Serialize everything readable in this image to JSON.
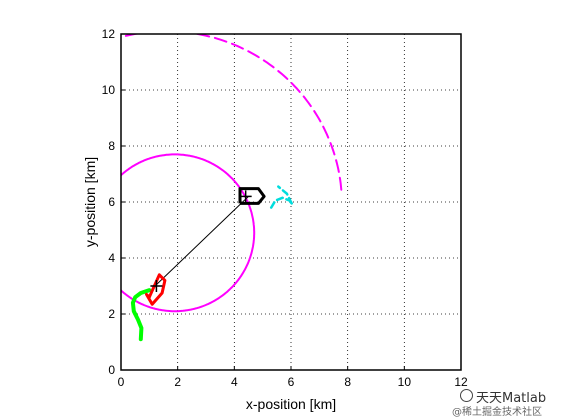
{
  "chart_data": {
    "type": "line",
    "title": "",
    "xlabel": "x-position [km]",
    "ylabel": "y-position [km]",
    "xlim": [
      0,
      12
    ],
    "ylim": [
      0,
      12
    ],
    "xticks": [
      0,
      2,
      4,
      6,
      8,
      10,
      12
    ],
    "yticks": [
      0,
      2,
      4,
      6,
      8,
      10,
      12
    ],
    "grid": true,
    "series": [
      {
        "style": "dashed",
        "color": "#ff00ff",
        "center": [
          1.6,
          5.9
        ],
        "radius": 6.2,
        "arc_deg": [
          5,
          140
        ]
      },
      {
        "style": "solid",
        "color": "#ff00ff",
        "center": [
          1.9,
          4.9
        ],
        "radius": 2.8,
        "arc_deg": [
          -140,
          200
        ]
      },
      {
        "style": "solid",
        "color": "#000000",
        "x": [
          1.2,
          4.5
        ],
        "y": [
          3.0,
          6.2
        ]
      },
      {
        "style": "solid-thick",
        "color": "#00ff00",
        "x": [
          0.7,
          0.72,
          0.6,
          0.45,
          0.42,
          0.5,
          0.7,
          1.0
        ],
        "y": [
          1.1,
          1.5,
          1.8,
          2.1,
          2.4,
          2.6,
          2.75,
          2.85
        ]
      },
      {
        "style": "dashed-short",
        "color": "#00dddd",
        "x": [
          5.3,
          5.45,
          5.7,
          5.95,
          6.05,
          5.85,
          5.55
        ],
        "y": [
          5.8,
          6.05,
          6.15,
          6.05,
          5.9,
          6.3,
          6.55
        ]
      },
      {
        "style": "outline",
        "color": "#ff0000",
        "x": [
          1.0,
          1.35,
          1.55,
          1.45,
          1.1,
          0.9,
          1.0
        ],
        "y": [
          2.6,
          3.4,
          3.2,
          2.75,
          2.35,
          2.7,
          2.6
        ]
      }
    ],
    "markers": [
      {
        "type": "cross",
        "x": 1.25,
        "y": 3.0
      },
      {
        "type": "cross",
        "x": 4.4,
        "y": 6.2
      }
    ]
  },
  "watermark": {
    "line1": "天天Matlab",
    "line2": "@稀土掘金技术社区"
  }
}
